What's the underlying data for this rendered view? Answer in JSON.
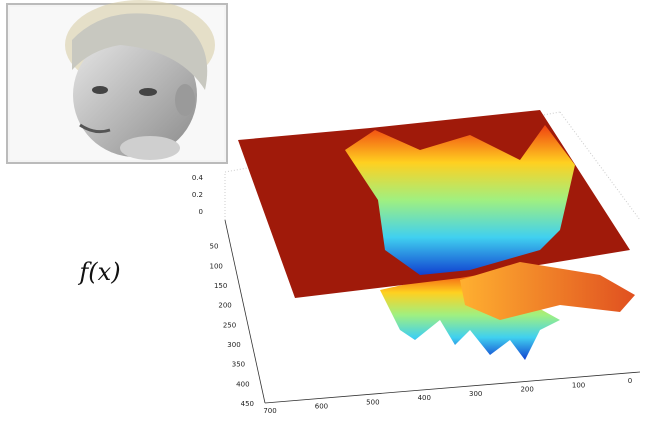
{
  "figure": {
    "function_label": "f(x)",
    "plot": {
      "z_ticks": [
        0.4,
        0.2,
        0
      ],
      "y_ticks": [
        50,
        100,
        150,
        200,
        250,
        300,
        350,
        400,
        450
      ],
      "x_ticks": [
        700,
        600,
        500,
        400,
        300,
        200,
        100,
        0
      ]
    }
  }
}
